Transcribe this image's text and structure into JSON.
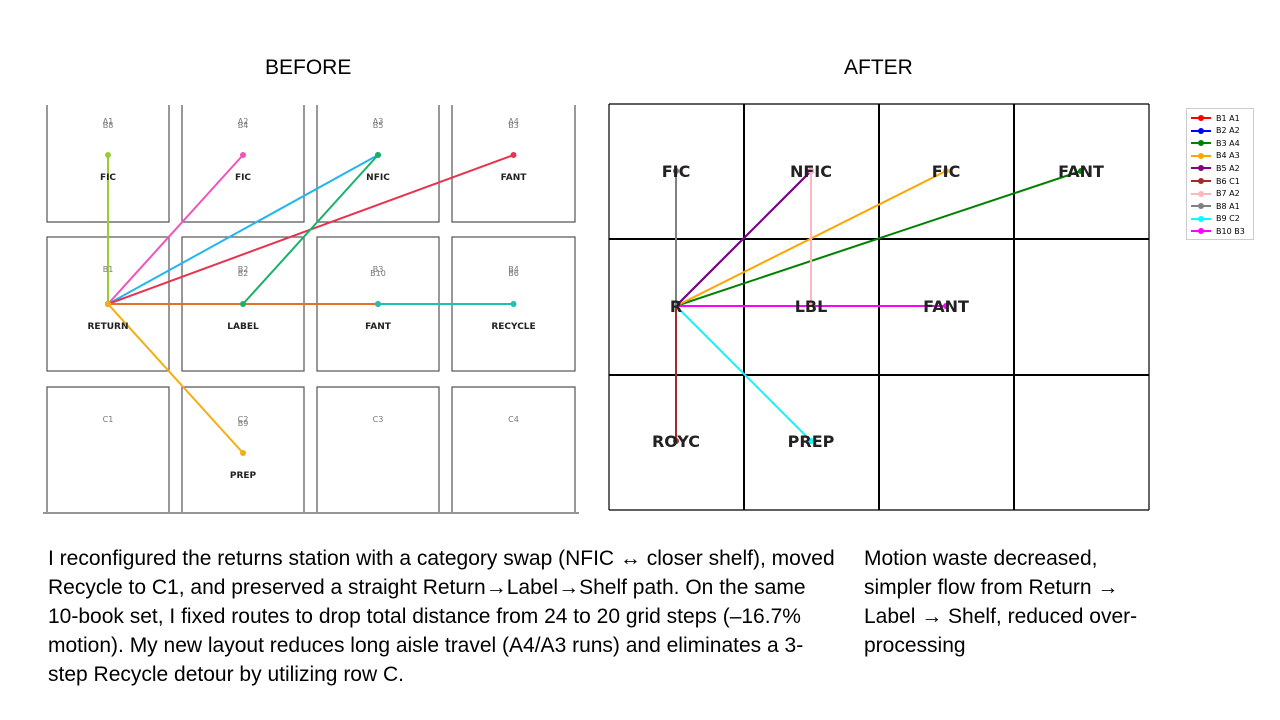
{
  "titles": {
    "before": "BEFORE",
    "after": "AFTER"
  },
  "colors": {
    "grid_before": "#555555",
    "grid_after": "#000000"
  },
  "before": {
    "cells": [
      {
        "id": "A1",
        "codes": "A1\nB8",
        "label": "FIC"
      },
      {
        "id": "A2",
        "codes": "A2\nB4",
        "label": "FIC"
      },
      {
        "id": "A3",
        "codes": "A3\nB5",
        "label": "NFIC"
      },
      {
        "id": "A4",
        "codes": "A4\nB3",
        "label": "FANT"
      },
      {
        "id": "B1",
        "codes": "B1",
        "label": "RETURN"
      },
      {
        "id": "B2",
        "codes": "B2\nB2",
        "label": "LABEL"
      },
      {
        "id": "B3",
        "codes": "B3\nB10",
        "label": "FANT"
      },
      {
        "id": "B4",
        "codes": "B4\nB6",
        "label": "RECYCLE"
      },
      {
        "id": "C1",
        "codes": "C1",
        "label": ""
      },
      {
        "id": "C2",
        "codes": "C2\nB9",
        "label": "PREP"
      },
      {
        "id": "C3",
        "codes": "C3",
        "label": ""
      },
      {
        "id": "C4",
        "codes": "C4",
        "label": ""
      }
    ],
    "routes": [
      {
        "color": "#9acd32",
        "from": [
          0,
          1
        ],
        "to": [
          0,
          0
        ]
      },
      {
        "color": "#ee55bb",
        "from": [
          0,
          1
        ],
        "to": [
          1,
          0
        ]
      },
      {
        "color": "#22b5ee",
        "from": [
          0,
          1
        ],
        "to": [
          2,
          0
        ]
      },
      {
        "color": "#e8334f",
        "from": [
          0,
          1
        ],
        "to": [
          3,
          0
        ]
      },
      {
        "color": "#e2722a",
        "from": [
          0,
          1
        ],
        "to": [
          2,
          1
        ]
      },
      {
        "color": "#17b26a",
        "from": [
          1,
          1
        ],
        "to": [
          2,
          0
        ]
      },
      {
        "color": "#1fbfb5",
        "from": [
          2,
          1
        ],
        "to": [
          3,
          1
        ]
      },
      {
        "color": "#f5ad14",
        "from": [
          0,
          1
        ],
        "to": [
          1,
          2
        ]
      }
    ]
  },
  "after": {
    "labels": [
      {
        "text": "FIC",
        "col": 0,
        "row": 0
      },
      {
        "text": "NFIC",
        "col": 1,
        "row": 0
      },
      {
        "text": "FIC",
        "col": 2,
        "row": 0
      },
      {
        "text": "FANT",
        "col": 3,
        "row": 0
      },
      {
        "text": "R",
        "col": 0,
        "row": 1
      },
      {
        "text": "LBL",
        "col": 1,
        "row": 1
      },
      {
        "text": "FANT",
        "col": 2,
        "row": 1
      },
      {
        "text": "ROYC",
        "col": 0,
        "row": 2
      },
      {
        "text": "PREP",
        "col": 1,
        "row": 2
      }
    ],
    "routes": [
      {
        "name": "B1 A1",
        "color": "#ff0000",
        "to": [
          0,
          0
        ]
      },
      {
        "name": "B2 A2",
        "color": "#0000ff",
        "to": [
          1,
          0
        ]
      },
      {
        "name": "B3 A4",
        "color": "#008000",
        "to": [
          3,
          0
        ]
      },
      {
        "name": "B4 A3",
        "color": "#ffa500",
        "to": [
          2,
          0
        ]
      },
      {
        "name": "B5 A2",
        "color": "#800080",
        "to": [
          1,
          0
        ]
      },
      {
        "name": "B6 C1",
        "color": "#a52a2a",
        "to": [
          0,
          2
        ]
      },
      {
        "name": "B7 A2",
        "color": "#ffb6c1",
        "from": [
          1,
          1
        ],
        "to": [
          1,
          0
        ]
      },
      {
        "name": "B8 A1",
        "color": "#808080",
        "to": [
          0,
          0
        ]
      },
      {
        "name": "B9 C2",
        "color": "#00ffff",
        "to": [
          1,
          2
        ]
      },
      {
        "name": "B10 B3",
        "color": "#ff00ff",
        "to": [
          2,
          1
        ]
      }
    ]
  },
  "text": {
    "left": "I reconfigured the returns station with a category swap (NFIC ↔ closer shelf), moved Recycle to C1, and preserved a straight Return→Label→Shelf path. On the same 10-book set, I fixed routes to drop total distance from 24 to 20 grid steps (–16.7% motion). My new layout reduces long aisle travel (A4/A3 runs) and eliminates a 3-step Recycle detour by utilizing row C.",
    "right": "Motion waste decreased, simpler flow from Return → Label → Shelf, reduced over-processing"
  }
}
